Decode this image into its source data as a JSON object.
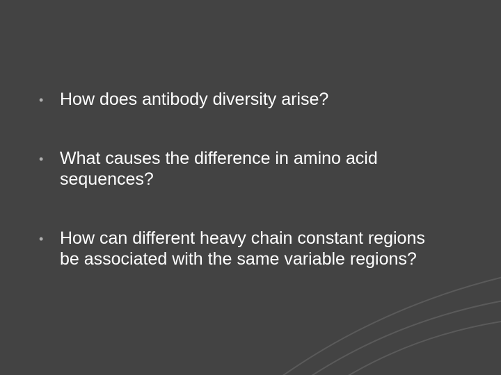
{
  "slide": {
    "background_color": "#434343",
    "text_color": "#ffffff",
    "bullet_color": "#b0b0b0",
    "font_family": "Arial",
    "body_fontsize_pt": 19,
    "bullets": [
      {
        "marker": "•",
        "text": "How does antibody diversity arise?"
      },
      {
        "marker": "•",
        "text": "What causes the difference in amino acid sequences?"
      },
      {
        "marker": "•",
        "text": "How can different heavy chain constant regions be associated with the same variable regions?"
      }
    ],
    "swoosh": {
      "stroke_color": "#5a5a5a",
      "stroke_width": 2,
      "paths": [
        "M 420 560 Q 560 460 740 430",
        "M 380 560 Q 540 440 740 395",
        "M 470 560 Q 590 480 740 460"
      ]
    }
  }
}
